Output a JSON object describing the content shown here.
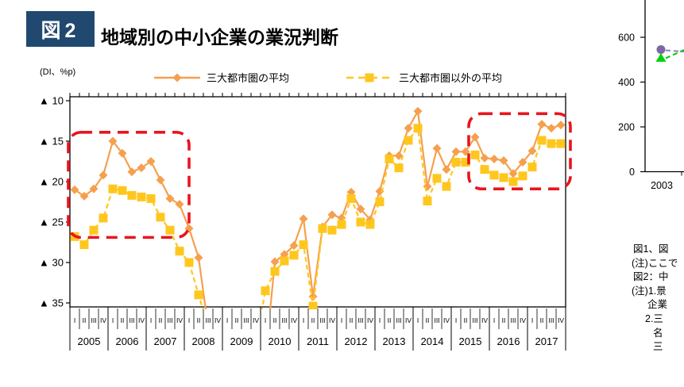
{
  "header": {
    "badge": "図2",
    "title": "地域別の中小企業の業況判断"
  },
  "main_chart": {
    "unit_label": "(DI、%p)",
    "legend": [
      {
        "label": "三大都市圏の平均",
        "color": "#F5A04E",
        "marker": "diamond",
        "line": "solid"
      },
      {
        "label": "三大都市圏以外の平均",
        "color": "#FFC61E",
        "marker": "square",
        "line": "dashed"
      }
    ]
  },
  "chart_data": [
    {
      "type": "line",
      "title": "地域別の中小企業の業況判断",
      "ylabel": "DI、%p",
      "years": [
        2005,
        2006,
        2007,
        2008,
        2009,
        2010,
        2011,
        2012,
        2013,
        2014,
        2015,
        2016,
        2017
      ],
      "quarter_labels": [
        "I",
        "II",
        "III",
        "IV"
      ],
      "y_ticks": [
        -10,
        -15,
        -20,
        -25,
        -30,
        -35
      ],
      "y_tick_labels": [
        "▲ 10",
        "▲ 15",
        "▲ 20",
        "▲ 25",
        "▲ 30",
        "▲ 35"
      ],
      "ylim": [
        -35.5,
        -9.5
      ],
      "grid": false,
      "legend_position": "top",
      "series": [
        {
          "name": "三大都市圏の平均",
          "color": "#F5A04E",
          "marker": "diamond",
          "line_style": "solid",
          "values": [
            -21.0,
            -21.8,
            -20.9,
            -19.2,
            -15.0,
            -16.5,
            -18.8,
            -18.3,
            -17.5,
            -19.8,
            -22.1,
            -22.8,
            -25.8,
            -29.4,
            -38,
            null,
            null,
            null,
            null,
            null,
            -42,
            -29.9,
            -29.0,
            -27.9,
            -24.6,
            -34.2,
            -25.6,
            -24.1,
            -24.5,
            -21.3,
            -23.4,
            -24.7,
            -21.2,
            -16.8,
            -16.8,
            -13.4,
            -11.3,
            -20.6,
            -15.9,
            -18.5,
            -16.3,
            -16.3,
            -14.5,
            -17.1,
            -17.2,
            -17.4,
            -19.0,
            -17.6,
            -16.2,
            -12.9,
            -13.4,
            -13.0
          ]
        },
        {
          "name": "三大都市圏以外の平均",
          "color": "#FFC61E",
          "marker": "square",
          "line_style": "dashed",
          "values": [
            -26.8,
            -27.8,
            -26.0,
            -24.5,
            -20.9,
            -21.1,
            -21.7,
            -21.9,
            -22.1,
            -24.4,
            -26.0,
            -28.6,
            -30.0,
            -34.0,
            -38,
            null,
            null,
            null,
            null,
            -40,
            -33.5,
            -31.1,
            -29.8,
            -29.1,
            -27.8,
            -35.4,
            -25.8,
            -26.0,
            -25.3,
            -22.1,
            -25.0,
            -25.3,
            -22.5,
            -17.2,
            -18.3,
            -14.9,
            -13.4,
            -22.4,
            -19.6,
            -20.6,
            -17.6,
            -17.6,
            -16.7,
            -18.5,
            -19.2,
            -19.5,
            -20.0,
            -19.3,
            -18.2,
            -14.9,
            -15.3,
            -15.3
          ]
        }
      ],
      "highlight_boxes": [
        {
          "style": "dashed",
          "color": "#E9151D",
          "from_index": 0,
          "to_index": 11,
          "y_top": -13.9,
          "y_bottom": -26.9
        },
        {
          "style": "dashed",
          "color": "#E9151D",
          "from_index": 42,
          "to_index": 51,
          "y_top": -11.6,
          "y_bottom": -20.9
        }
      ]
    },
    {
      "type": "line",
      "y_ticks": [
        600,
        400,
        200,
        0
      ],
      "x_tick_labels": [
        "2003"
      ],
      "series": [
        {
          "name": "",
          "marker": "circle",
          "color": "#7B68A5",
          "line_color": "#8F80B4",
          "line_style": "dashed",
          "points": [
            {
              "x": "2003",
              "y": 545
            }
          ]
        },
        {
          "name": "",
          "marker": "triangle",
          "color": "#00D20C",
          "line_color": "#00C818",
          "line_style": "dashed",
          "points": [
            {
              "x": "2003",
              "y": 510
            }
          ]
        }
      ]
    }
  ],
  "notes": {
    "lines": [
      "図1、図",
      "(注)ここで",
      "図2：中",
      "(注)1.景",
      "企業",
      "2.三",
      "名",
      "三"
    ]
  }
}
